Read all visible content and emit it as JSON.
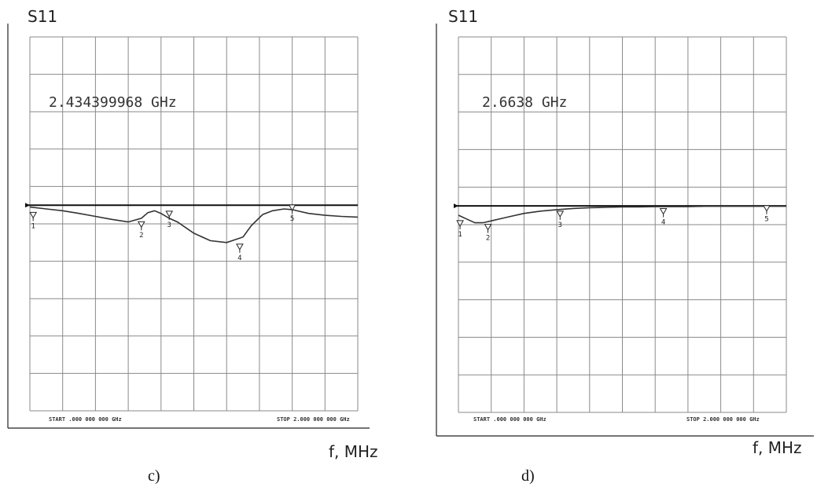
{
  "chart_data": [
    {
      "type": "line",
      "caption": "c)",
      "ylabel": "S11",
      "xlabel": "f, MHz",
      "marker_frequency_text": "2.434399968 GHz",
      "start_text": "START .000 000 000 GHz",
      "stop_text": "STOP 2.000 000 000 GHz",
      "xlim": [
        0,
        2
      ],
      "ylim": [
        -5.5,
        4.5
      ],
      "grid": true,
      "reference_level": 0,
      "series": [
        {
          "x": [
            0.0,
            0.1,
            0.2,
            0.3,
            0.4,
            0.5,
            0.6,
            0.68,
            0.72,
            0.76,
            0.8,
            0.85,
            0.9,
            1.0,
            1.1,
            1.2,
            1.3,
            1.35,
            1.42,
            1.48,
            1.55,
            1.6,
            1.7,
            1.8,
            1.9,
            2.0
          ],
          "y": [
            -0.05,
            -0.1,
            -0.15,
            -0.22,
            -0.3,
            -0.38,
            -0.45,
            -0.35,
            -0.2,
            -0.15,
            -0.22,
            -0.35,
            -0.45,
            -0.75,
            -0.95,
            -1.0,
            -0.85,
            -0.55,
            -0.25,
            -0.15,
            -0.1,
            -0.12,
            -0.22,
            -0.27,
            -0.3,
            -0.32
          ]
        }
      ],
      "markers": [
        {
          "label": "1",
          "x": 0.02,
          "y": -0.15
        },
        {
          "label": "2",
          "x": 0.68,
          "y": -0.4
        },
        {
          "label": "3",
          "x": 0.85,
          "y": -0.12
        },
        {
          "label": "4",
          "x": 1.28,
          "y": -1.0
        },
        {
          "label": "5",
          "x": 1.6,
          "y": 0.05
        }
      ]
    },
    {
      "type": "line",
      "caption": "d)",
      "ylabel": "S11",
      "xlabel": "f, MHz",
      "marker_frequency_text": "2.6638 GHz",
      "start_text": "START .000 000 000 GHz",
      "stop_text": "STOP 2.000 000 000 GHz",
      "xlim": [
        0,
        2
      ],
      "ylim": [
        -5.5,
        4.5
      ],
      "grid": true,
      "reference_level": 0,
      "series": [
        {
          "x": [
            0.0,
            0.05,
            0.1,
            0.15,
            0.2,
            0.3,
            0.4,
            0.5,
            0.6,
            0.7,
            0.8,
            0.9,
            1.0,
            1.1,
            1.2,
            1.3,
            1.4,
            1.5,
            1.6,
            1.7,
            1.8,
            1.9,
            2.0
          ],
          "y": [
            -0.25,
            -0.35,
            -0.45,
            -0.45,
            -0.4,
            -0.3,
            -0.2,
            -0.14,
            -0.1,
            -0.07,
            -0.05,
            -0.04,
            -0.03,
            -0.03,
            -0.02,
            -0.02,
            -0.02,
            -0.01,
            -0.01,
            -0.01,
            -0.01,
            -0.01,
            -0.01
          ]
        }
      ],
      "markers": [
        {
          "label": "1",
          "x": 0.01,
          "y": -0.35
        },
        {
          "label": "2",
          "x": 0.18,
          "y": -0.45
        },
        {
          "label": "3",
          "x": 0.62,
          "y": -0.1
        },
        {
          "label": "4",
          "x": 1.25,
          "y": -0.03
        },
        {
          "label": "5",
          "x": 1.88,
          "y": 0.05
        }
      ]
    }
  ]
}
